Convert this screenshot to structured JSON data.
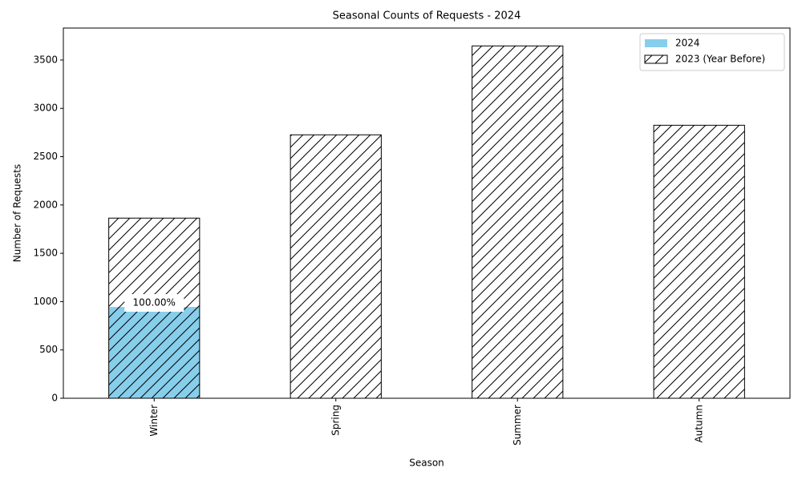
{
  "chart_data": {
    "type": "bar",
    "title": "Seasonal Counts of Requests - 2024",
    "x_label": "Season",
    "y_label": "Number of Requests",
    "categories": [
      "Winter",
      "Spring",
      "Summer",
      "Autumn"
    ],
    "series": [
      {
        "name": "2024",
        "color": "#87ceeb",
        "hatch": false,
        "values": [
          945,
          0,
          0,
          0
        ]
      },
      {
        "name": "2023 (Year Before)",
        "color": "#000000",
        "hatch": true,
        "values": [
          1864,
          2726,
          3646,
          2825
        ]
      }
    ],
    "annotation": "100.00%",
    "ylim": [
      0,
      3831
    ],
    "yticks": [
      0,
      500,
      1000,
      1500,
      2000,
      2500,
      3000,
      3500
    ],
    "grid": false,
    "legend": "upper right"
  }
}
